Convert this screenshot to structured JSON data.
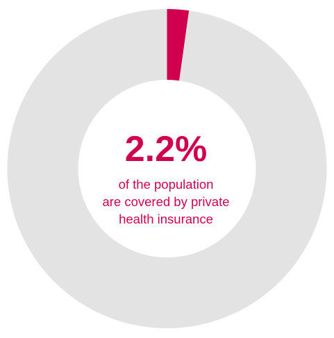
{
  "chart_data": {
    "type": "pie",
    "style": "donut",
    "slices": [
      {
        "label": "private health insurance",
        "value": 2.2,
        "color": "#d0004f"
      },
      {
        "label": "",
        "value": 97.8,
        "color": "#e3e3e3"
      }
    ],
    "center_value": "2.2%",
    "caption_lines": [
      "of the population",
      "are covered by private",
      "health insurance"
    ]
  }
}
